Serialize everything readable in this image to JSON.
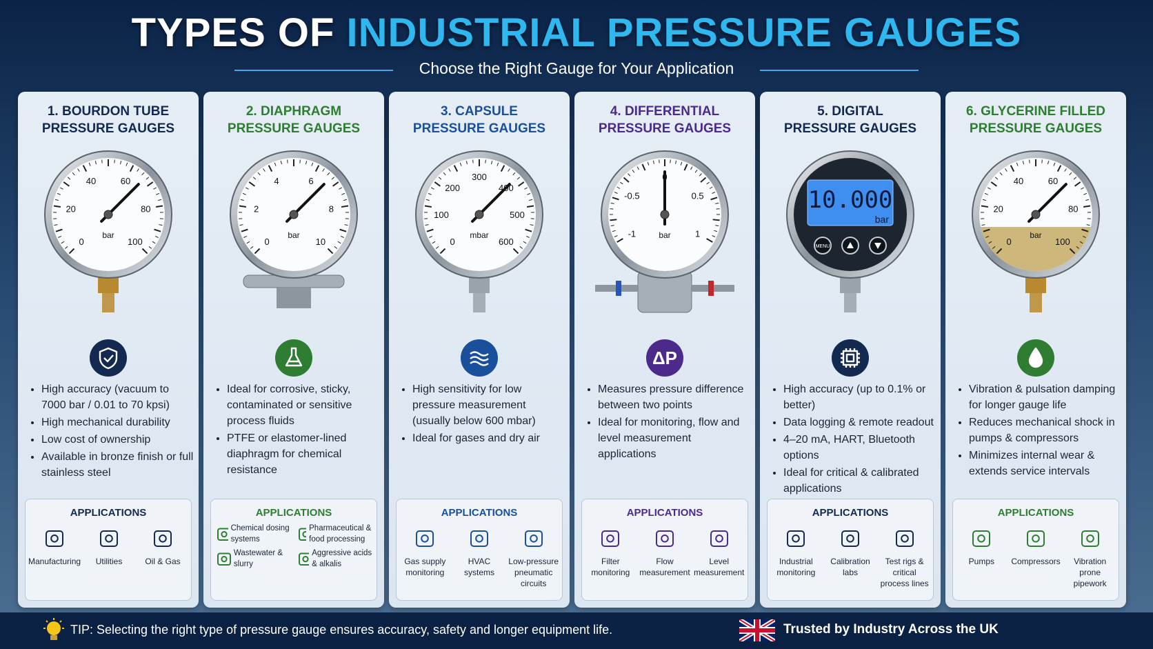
{
  "header": {
    "title_part1": "TYPES OF",
    "title_part2": "INDUSTRIAL PRESSURE GAUGES",
    "subtitle": "Choose the Right Gauge for Your Application"
  },
  "cards": [
    {
      "title_line1": "1. BOURDON TUBE",
      "title_line2": "PRESSURE GAUGES",
      "color": "#13294f",
      "dial": {
        "style": "analog",
        "labels": [
          "0",
          "20",
          "40",
          "60",
          "80",
          "100"
        ],
        "unit": "bar"
      },
      "bullets": [
        "High accuracy (vacuum to 7000 bar / 0.01 to 70 kpsi)",
        "High mechanical durability",
        "Low cost of ownership",
        "Available in bronze finish or full stainless steel"
      ],
      "applications_heading": "APPLICATIONS",
      "applications": [
        "Manufacturing",
        "Utilities",
        "Oil & Gas"
      ]
    },
    {
      "title_line1": "2. DIAPHRAGM",
      "title_line2": "PRESSURE GAUGES",
      "color": "#2e7d32",
      "dial": {
        "style": "analog",
        "labels": [
          "0",
          "2",
          "4",
          "6",
          "8",
          "10"
        ],
        "unit": "bar"
      },
      "bullets": [
        "Ideal for corrosive, sticky, contaminated or sensitive process fluids",
        "PTFE or elastomer-lined diaphragm for chemical resistance"
      ],
      "applications_heading": "APPLICATIONS",
      "applications": [
        "Chemical dosing systems",
        "Pharmaceutical & food processing",
        "Wastewater & slurry",
        "Aggressive acids & alkalis"
      ]
    },
    {
      "title_line1": "3. CAPSULE",
      "title_line2": "PRESSURE GAUGES",
      "color": "#1a4f9c",
      "dial": {
        "style": "analog",
        "labels": [
          "0",
          "100",
          "200",
          "300",
          "400",
          "500",
          "600"
        ],
        "unit": "mbar"
      },
      "bullets": [
        "High sensitivity for low pressure measurement (usually below 600 mbar)",
        "Ideal for gases and dry air"
      ],
      "applications_heading": "APPLICATIONS",
      "applications": [
        "Gas supply monitoring",
        "HVAC systems",
        "Low-pressure pneumatic circuits"
      ]
    },
    {
      "title_line1": "4. DIFFERENTIAL",
      "title_line2": "PRESSURE GAUGES",
      "color": "#4b2a8c",
      "icon_text": "ΔP",
      "dial": {
        "style": "analog",
        "labels": [
          "-1",
          "-0.5",
          "0",
          "0.5",
          "1"
        ],
        "unit": "bar"
      },
      "bullets": [
        "Measures pressure difference between two points",
        "Ideal for monitoring, flow and level measurement applications"
      ],
      "applications_heading": "APPLICATIONS",
      "applications": [
        "Filter monitoring",
        "Flow measurement",
        "Level measurement"
      ]
    },
    {
      "title_line1": "5. DIGITAL",
      "title_line2": "PRESSURE GAUGES",
      "color": "#13294f",
      "dial": {
        "style": "digital",
        "display": "10.000",
        "unit": "bar",
        "button": "MENU"
      },
      "bullets": [
        "High accuracy (up to 0.1% or better)",
        "Data logging & remote readout",
        "4–20 mA, HART, Bluetooth options",
        "Ideal for critical & calibrated applications"
      ],
      "applications_heading": "APPLICATIONS",
      "applications": [
        "Industrial monitoring",
        "Calibration labs",
        "Test rigs & critical process lines"
      ]
    },
    {
      "title_line1": "6. GLYCERINE FILLED",
      "title_line2": "PRESSURE GAUGES",
      "color": "#2e7d32",
      "dial": {
        "style": "analog",
        "labels": [
          "0",
          "20",
          "40",
          "60",
          "80",
          "100"
        ],
        "unit": "bar"
      },
      "bullets": [
        "Vibration & pulsation damping for longer gauge life",
        "Reduces mechanical shock in pumps & compressors",
        "Minimizes internal wear & extends service intervals"
      ],
      "applications_heading": "APPLICATIONS",
      "applications": [
        "Pumps",
        "Compressors",
        "Vibration prone pipework"
      ]
    }
  ],
  "footer": {
    "tip": "TIP: Selecting the right type of pressure gauge ensures accuracy, safety and longer equipment life.",
    "trust": "Trusted by Industry Across the UK"
  }
}
